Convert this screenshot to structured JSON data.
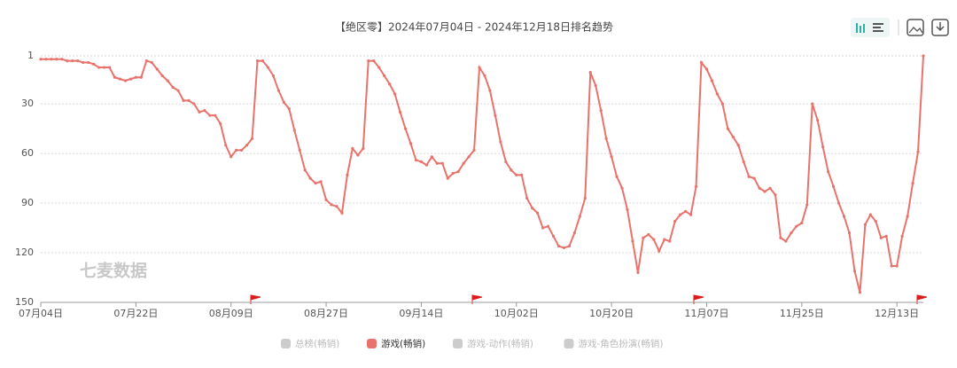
{
  "chart_data": {
    "type": "line",
    "title": "【绝区零】2024年07月04日 - 2024年12月18日排名趋势",
    "watermark": "七麦数据",
    "categories": [
      "07月04日",
      null,
      null,
      null,
      null,
      null,
      null,
      null,
      null,
      null,
      null,
      null,
      null,
      null,
      null,
      null,
      null,
      null,
      "07月22日",
      null,
      null,
      null,
      null,
      null,
      null,
      null,
      null,
      null,
      null,
      null,
      null,
      null,
      null,
      null,
      null,
      null,
      "08月09日",
      null,
      null,
      null,
      null,
      null,
      null,
      null,
      null,
      null,
      null,
      null,
      null,
      null,
      null,
      null,
      null,
      null,
      "08月27日",
      null,
      null,
      null,
      null,
      null,
      null,
      null,
      null,
      null,
      null,
      null,
      null,
      null,
      null,
      null,
      null,
      null,
      "09月14日",
      null,
      null,
      null,
      null,
      null,
      null,
      null,
      null,
      null,
      null,
      null,
      null,
      null,
      null,
      null,
      null,
      null,
      "10月02日",
      null,
      null,
      null,
      null,
      null,
      null,
      null,
      null,
      null,
      null,
      null,
      null,
      null,
      null,
      null,
      null,
      null,
      "10月20日",
      null,
      null,
      null,
      null,
      null,
      null,
      null,
      null,
      null,
      null,
      null,
      null,
      null,
      null,
      null,
      null,
      null,
      "11月07日",
      null,
      null,
      null,
      null,
      null,
      null,
      null,
      null,
      null,
      null,
      null,
      null,
      null,
      null,
      null,
      null,
      null,
      "11月25日",
      null,
      null,
      null,
      null,
      null,
      null,
      null,
      null,
      null,
      null,
      null,
      null,
      null,
      null,
      null,
      null,
      null,
      "12月13日",
      null,
      null,
      null,
      null,
      null
    ],
    "series": [
      {
        "name": "总榜(畅销)",
        "color": "#cccccc",
        "visible": false
      },
      {
        "name": "游戏(畅销)",
        "color": "#e8736c",
        "visible": true,
        "values": [
          3,
          3,
          3,
          3,
          3,
          4,
          4,
          4,
          5,
          5,
          6,
          8,
          8,
          8,
          14,
          15,
          16,
          15,
          14,
          14,
          4,
          5,
          9,
          13,
          16,
          20,
          22,
          28,
          28,
          30,
          35,
          34,
          37,
          37,
          42,
          55,
          62,
          58,
          58,
          55,
          51,
          4,
          4,
          8,
          13,
          22,
          29,
          33,
          46,
          58,
          70,
          75,
          78,
          77,
          88,
          91,
          92,
          96,
          73,
          57,
          61,
          57,
          4,
          4,
          8,
          13,
          18,
          24,
          35,
          45,
          54,
          64,
          65,
          67,
          62,
          66,
          66,
          75,
          72,
          71,
          66,
          62,
          58,
          8,
          13,
          22,
          37,
          53,
          65,
          70,
          73,
          73,
          87,
          93,
          96,
          105,
          104,
          110,
          116,
          117,
          116,
          108,
          98,
          87,
          11,
          19,
          34,
          51,
          62,
          74,
          81,
          94,
          113,
          132,
          111,
          109,
          112,
          119,
          112,
          113,
          101,
          97,
          95,
          97,
          80,
          5,
          9,
          16,
          24,
          30,
          45,
          50,
          55,
          65,
          74,
          75,
          81,
          83,
          81,
          85,
          111,
          113,
          108,
          104,
          102,
          91,
          30,
          40,
          56,
          71,
          80,
          90,
          98,
          108,
          131,
          144,
          103,
          97,
          101,
          111,
          110,
          128,
          128,
          110,
          98,
          78,
          59,
          1
        ]
      },
      {
        "name": "游戏-动作(畅销)",
        "color": "#cccccc",
        "visible": false
      },
      {
        "name": "游戏-角色扮演(畅销)",
        "color": "#cccccc",
        "visible": false
      }
    ],
    "ylim": [
      1,
      150
    ],
    "y_inverted": true,
    "yticks": [
      1,
      30,
      60,
      90,
      120,
      150
    ],
    "grid": true
  }
}
